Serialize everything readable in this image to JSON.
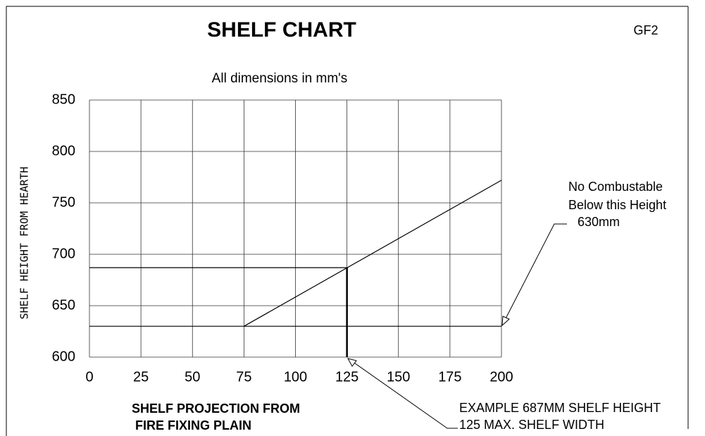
{
  "chart_data": {
    "type": "line",
    "title": "SHELF CHART",
    "code": "GF2",
    "subtitle": "All dimensions in mm's",
    "y_label": "SHELF HEIGHT FROM HEARTH",
    "x_label": [
      "SHELF PROJECTION FROM",
      "FIRE FIXING PLAIN"
    ],
    "xlim": [
      0,
      200
    ],
    "xticks": [
      0,
      25,
      50,
      75,
      100,
      125,
      150,
      175,
      200
    ],
    "ylim": [
      600,
      850
    ],
    "yticks": [
      600,
      650,
      700,
      750,
      800,
      850
    ],
    "grid": true,
    "series": [
      {
        "color": "#000000",
        "x": [
          75,
          200
        ],
        "values": [
          630,
          772
        ]
      },
      {
        "color": "#000000",
        "x": [
          0,
          200
        ],
        "values": [
          630,
          630
        ]
      },
      {
        "color": "#000000",
        "x": [
          0,
          125
        ],
        "values": [
          687,
          687
        ]
      },
      {
        "color": "#000000",
        "x": [
          125,
          125
        ],
        "values": [
          600,
          687
        ]
      }
    ],
    "annotations": [
      {
        "lines": [
          "No Combustable",
          "Below this Height",
          "630mm"
        ]
      },
      {
        "lines": [
          "EXAMPLE 687MM SHELF HEIGHT",
          "125 MAX. SHELF WIDTH"
        ]
      }
    ]
  }
}
